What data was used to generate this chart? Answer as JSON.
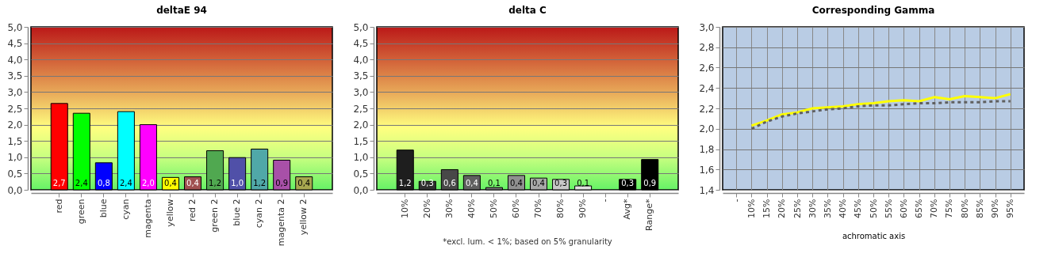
{
  "chart_data": [
    {
      "type": "bar",
      "title": "deltaE 94",
      "categories": [
        "red",
        "green",
        "blue",
        "cyan",
        "magenta",
        "yellow",
        "red 2",
        "green 2",
        "blue 2",
        "cyan 2",
        "magenta 2",
        "yellow 2"
      ],
      "values": [
        2.65,
        2.35,
        0.83,
        2.4,
        2.0,
        0.38,
        0.4,
        1.2,
        0.99,
        1.25,
        0.91,
        0.4
      ],
      "value_labels": [
        "2,7",
        "2,4",
        "0,8",
        "2,4",
        "2,0",
        "0,4",
        "0,4",
        "1,2",
        "1,0",
        "1,2",
        "0,9",
        "0,4"
      ],
      "colors": [
        "#ff0000",
        "#00ff00",
        "#0000ff",
        "#00ffff",
        "#ff00ff",
        "#ffff00",
        "#a05050",
        "#50a850",
        "#5050a8",
        "#50a8a8",
        "#a850a8",
        "#a8a850"
      ],
      "ylim": [
        0,
        5
      ],
      "yticks": [
        {
          "value": 0,
          "label": "0,0"
        },
        {
          "value": 0.5,
          "label": "0,5"
        },
        {
          "value": 1,
          "label": "1,0"
        },
        {
          "value": 1.5,
          "label": "1,5"
        },
        {
          "value": 2,
          "label": "2,0"
        },
        {
          "value": 2.5,
          "label": "2,5"
        },
        {
          "value": 3,
          "label": "3,0"
        },
        {
          "value": 3.5,
          "label": "3,5"
        },
        {
          "value": 4,
          "label": "4,0"
        },
        {
          "value": 4.5,
          "label": "4,5"
        },
        {
          "value": 5,
          "label": "5,0"
        }
      ],
      "grid": "y",
      "legend": false
    },
    {
      "type": "bar",
      "title": "delta C",
      "categories": [
        "10%",
        "20%",
        "30%",
        "40%",
        "50%",
        "60%",
        "70%",
        "80%",
        "90%",
        "-",
        "Avg*",
        "Range*"
      ],
      "values": [
        1.22,
        0.26,
        0.62,
        0.44,
        0.07,
        0.44,
        0.36,
        0.32,
        0.12,
        null,
        0.32,
        0.93
      ],
      "value_labels": [
        "1,2",
        "0,3",
        "0,6",
        "0,4",
        "0,1",
        "0,4",
        "0,4",
        "0,3",
        "0,1",
        null,
        "0,3",
        "0,9"
      ],
      "colors": [
        "#1e1e1e",
        "#303030",
        "#484848",
        "#606060",
        "#787878",
        "#909090",
        "#a8a8a8",
        "#c8c8c8",
        "#e0e0e0",
        null,
        "#000000",
        "#000000"
      ],
      "ylim": [
        0,
        5
      ],
      "yticks": [
        {
          "value": 0,
          "label": "0,0"
        },
        {
          "value": 0.5,
          "label": "0,5"
        },
        {
          "value": 1,
          "label": "1,0"
        },
        {
          "value": 1.5,
          "label": "1,5"
        },
        {
          "value": 2,
          "label": "2,0"
        },
        {
          "value": 2.5,
          "label": "2,5"
        },
        {
          "value": 3,
          "label": "3,0"
        },
        {
          "value": 3.5,
          "label": "3,5"
        },
        {
          "value": 4,
          "label": "4,0"
        },
        {
          "value": 4.5,
          "label": "4,5"
        },
        {
          "value": 5,
          "label": "5,0"
        }
      ],
      "grid": "y",
      "legend": false,
      "annotations": [
        "*excl. lum. < 1%; based on 5% granularity"
      ]
    },
    {
      "type": "line",
      "title": "Corresponding Gamma",
      "xlabel": "achromatic axis",
      "categories": [
        "-",
        "10%",
        "15%",
        "20%",
        "25%",
        "30%",
        "35%",
        "40%",
        "45%",
        "50%",
        "55%",
        "60%",
        "65%",
        "70%",
        "75%",
        "80%",
        "85%",
        "90%",
        "95%"
      ],
      "series": [
        {
          "color": "#ffff00",
          "line_style": "solid",
          "values": [
            null,
            2.03,
            2.08,
            2.14,
            2.16,
            2.2,
            2.21,
            2.22,
            2.24,
            2.25,
            2.27,
            2.28,
            2.27,
            2.31,
            2.29,
            2.32,
            2.31,
            2.3,
            2.34
          ]
        },
        {
          "color": "#606060",
          "line_style": "dashed",
          "values": [
            null,
            2.0,
            2.07,
            2.12,
            2.15,
            2.17,
            2.19,
            2.2,
            2.22,
            2.23,
            2.23,
            2.24,
            2.25,
            2.25,
            2.26,
            2.26,
            2.26,
            2.27,
            2.27
          ]
        }
      ],
      "ylim": [
        1.4,
        3.0
      ],
      "yticks": [
        {
          "value": 1.4,
          "label": "1,4"
        },
        {
          "value": 1.6,
          "label": "1,6"
        },
        {
          "value": 1.8,
          "label": "1,8"
        },
        {
          "value": 2.0,
          "label": "2,0"
        },
        {
          "value": 2.2,
          "label": "2,2"
        },
        {
          "value": 2.4,
          "label": "2,4"
        },
        {
          "value": 2.6,
          "label": "2,6"
        },
        {
          "value": 2.8,
          "label": "2,8"
        },
        {
          "value": 3.0,
          "label": "3,0"
        }
      ],
      "grid": true,
      "legend": false,
      "marker": "none"
    }
  ]
}
